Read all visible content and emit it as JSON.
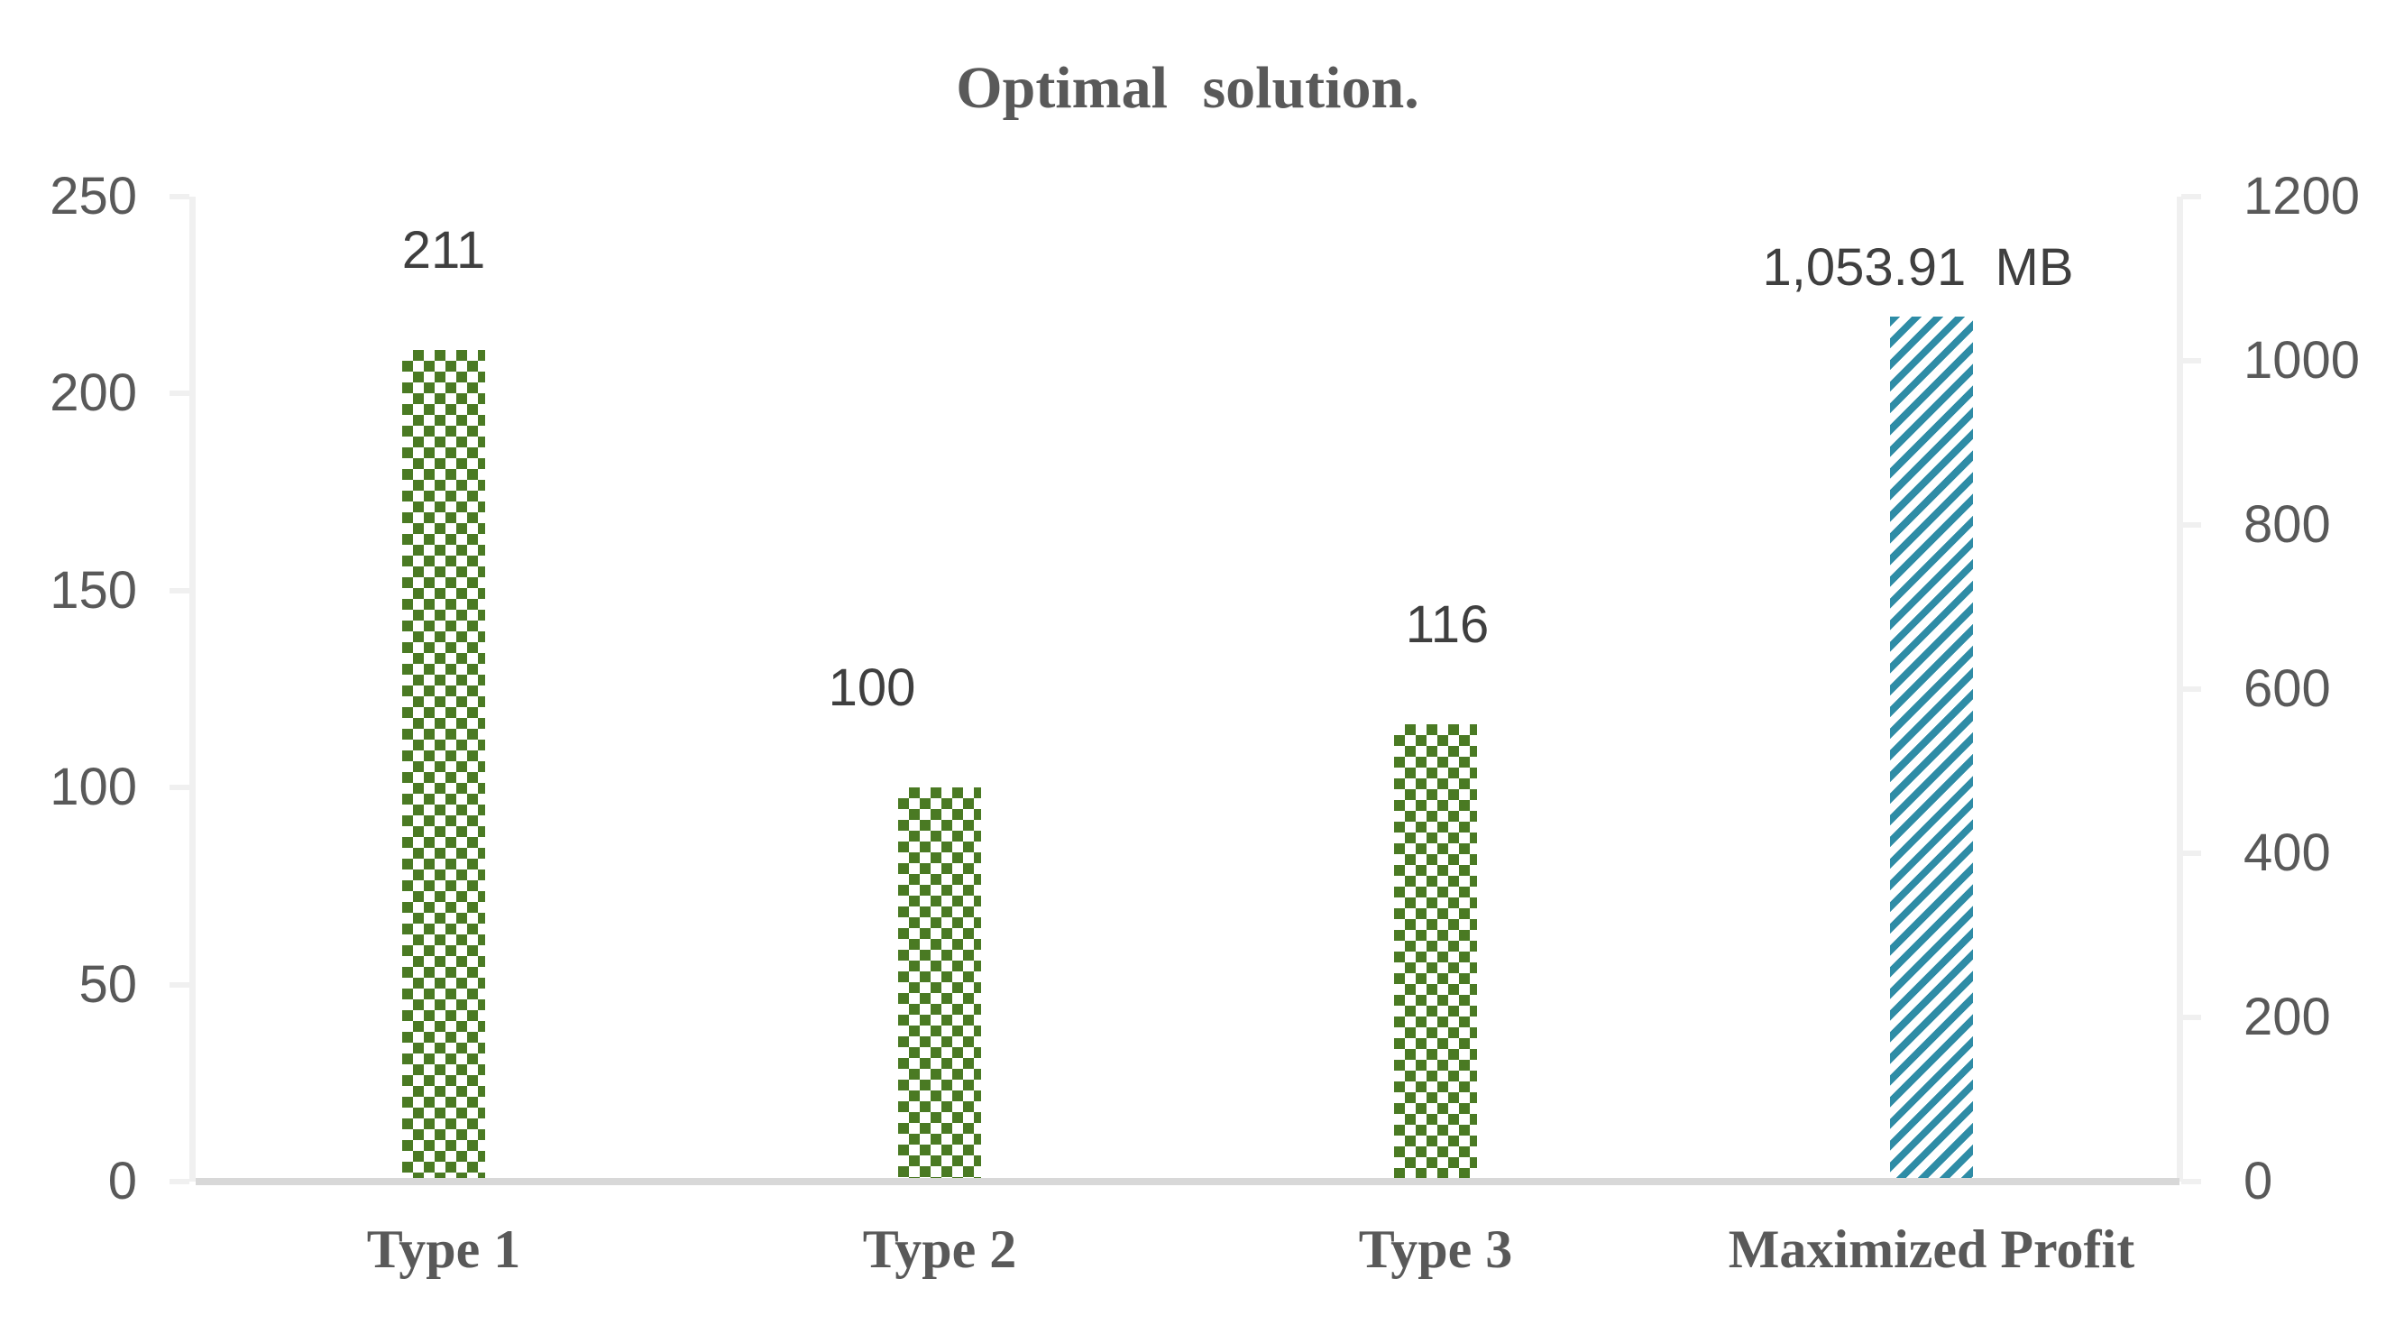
{
  "title": "Optimal solution.",
  "chart_data": {
    "type": "bar",
    "title": "Optimal solution.",
    "subtitle": "",
    "categories": [
      "Type 1",
      "Type 2",
      "Type 3",
      "Maximized Profit"
    ],
    "series": [
      {
        "axis": "left",
        "pattern": "checker",
        "color": "#4a7a23",
        "values": [
          211,
          100,
          116,
          null
        ]
      },
      {
        "axis": "right",
        "pattern": "diagonal-stripes",
        "color": "#2e8ca6",
        "values": [
          null,
          null,
          null,
          1053.91
        ]
      }
    ],
    "data_labels": [
      "211",
      "100",
      "116",
      "1,053.91  MB"
    ],
    "left_axis": {
      "min": 0,
      "max": 250,
      "step": 50,
      "ticks": [
        "250",
        "200",
        "150",
        "100",
        "50",
        "0"
      ]
    },
    "right_axis": {
      "min": 0,
      "max": 1200,
      "step": 200,
      "ticks": [
        "1200",
        "1000",
        "800",
        "600",
        "400",
        "200",
        "0"
      ]
    },
    "grid": false,
    "legend": false,
    "colors": {
      "green_pattern": "#4a7a23",
      "teal_pattern": "#2e8ca6",
      "axis_text": "#595959",
      "data_label_text": "#3f3f3f",
      "category_text": "#595959",
      "title_text": "#595959",
      "axis_line": "#f0f0f0",
      "baseline": "#d8d8d8",
      "background": "#ffffff"
    }
  }
}
